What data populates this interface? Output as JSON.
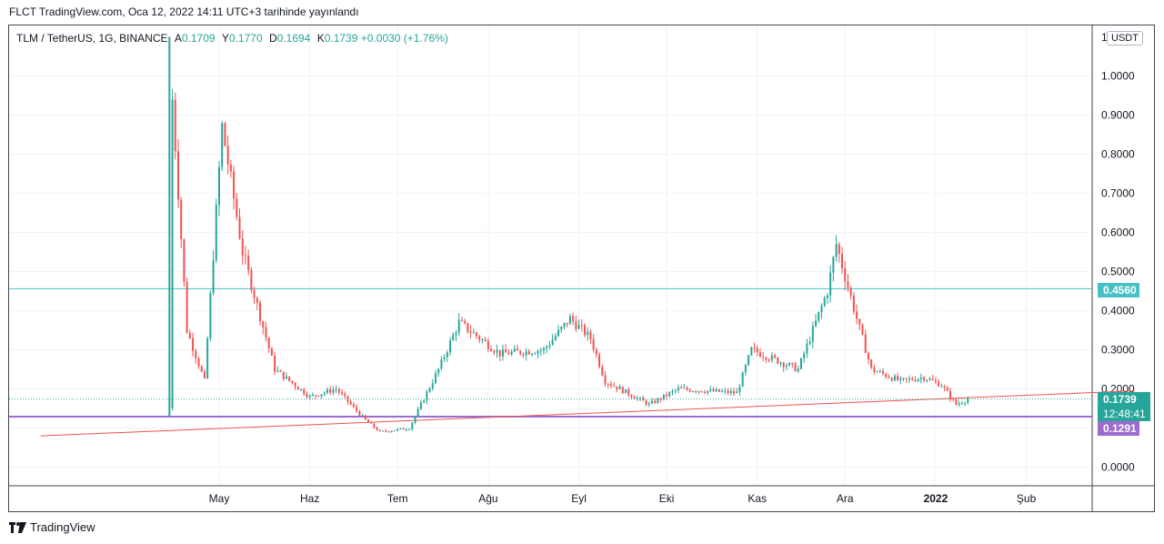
{
  "header": {
    "text": "FLCT TradingView.com, Oca 12, 2022 14:11 UTC+3 tarihinde yayınlandı"
  },
  "legend": {
    "symbol": "TLM / TetherUS, 1G, BINANCE",
    "open_key": "A",
    "open": "0.1709",
    "high_key": "Y",
    "high": "0.1770",
    "low_key": "D",
    "low": "0.1694",
    "close_key": "K",
    "close": "0.1739",
    "change": "+0.0030 (+1.76%)"
  },
  "price_axis": {
    "unit": "USDT",
    "top_label": "1"
  },
  "current_price": {
    "value": "0.1739",
    "countdown": "12:48:41",
    "color": "#26a69a"
  },
  "h_line_teal": {
    "value": "0.4560",
    "color": "#47c1c7"
  },
  "h_line_purple": {
    "value": "0.1291",
    "color": "#9c6bcf"
  },
  "footer": {
    "brand": "TradingView"
  },
  "colors": {
    "up": "#26a69a",
    "down": "#ef5350",
    "trendline": "#ef5350",
    "grid": "#f0f3fa"
  },
  "chart_data": {
    "type": "candlestick",
    "y_ticks": [
      "1.0000",
      "0.9000",
      "0.8000",
      "0.7000",
      "0.6000",
      "0.5000",
      "0.4000",
      "0.3000",
      "0.2000",
      "0.1000",
      "0.0000"
    ],
    "ylim": [
      -0.05,
      1.1
    ],
    "x_ticks": [
      "May",
      "Haz",
      "Tem",
      "Ağu",
      "Eyl",
      "Eki",
      "Kas",
      "Ara",
      "2022",
      "Şub"
    ],
    "key_points": [
      {
        "date": "2021-04-14",
        "value": 0.15
      },
      {
        "date": "2021-04-15",
        "value": 0.94
      },
      {
        "date": "2021-04-20",
        "value": 0.35
      },
      {
        "date": "2021-04-26",
        "value": 0.22
      },
      {
        "date": "2021-05-02",
        "value": 0.87
      },
      {
        "date": "2021-05-09",
        "value": 0.55
      },
      {
        "date": "2021-05-20",
        "value": 0.25
      },
      {
        "date": "2021-06-01",
        "value": 0.18
      },
      {
        "date": "2021-06-10",
        "value": 0.2
      },
      {
        "date": "2021-06-20",
        "value": 0.12
      },
      {
        "date": "2021-06-25",
        "value": 0.09
      },
      {
        "date": "2021-07-05",
        "value": 0.1
      },
      {
        "date": "2021-07-15",
        "value": 0.25
      },
      {
        "date": "2021-07-22",
        "value": 0.37
      },
      {
        "date": "2021-08-05",
        "value": 0.29
      },
      {
        "date": "2021-08-20",
        "value": 0.3
      },
      {
        "date": "2021-08-29",
        "value": 0.38
      },
      {
        "date": "2021-09-05",
        "value": 0.33
      },
      {
        "date": "2021-09-10",
        "value": 0.22
      },
      {
        "date": "2021-09-25",
        "value": 0.16
      },
      {
        "date": "2021-10-05",
        "value": 0.2
      },
      {
        "date": "2021-10-25",
        "value": 0.19
      },
      {
        "date": "2021-10-30",
        "value": 0.3
      },
      {
        "date": "2021-11-15",
        "value": 0.25
      },
      {
        "date": "2021-11-25",
        "value": 0.45
      },
      {
        "date": "2021-11-28",
        "value": 0.57
      },
      {
        "date": "2021-12-05",
        "value": 0.38
      },
      {
        "date": "2021-12-10",
        "value": 0.25
      },
      {
        "date": "2021-12-20",
        "value": 0.22
      },
      {
        "date": "2021-12-28",
        "value": 0.23
      },
      {
        "date": "2022-01-03",
        "value": 0.21
      },
      {
        "date": "2022-01-08",
        "value": 0.16
      },
      {
        "date": "2022-01-12",
        "value": 0.1739
      }
    ],
    "trendline": [
      {
        "date": "2021-03-01",
        "value": 0.08
      },
      {
        "date": "2022-03-10",
        "value": 0.195
      }
    ]
  }
}
